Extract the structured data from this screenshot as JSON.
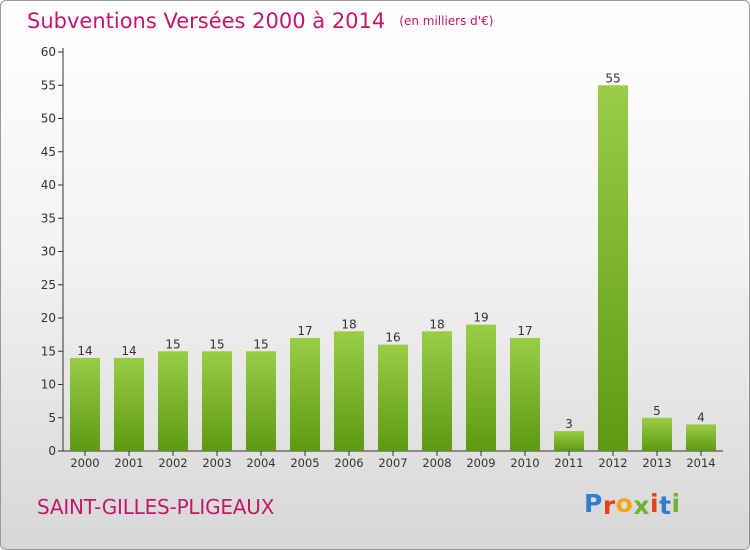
{
  "header": {
    "title": "Subventions Versées 2000 à 2014",
    "unit": "(en milliers d'€)"
  },
  "footer": {
    "commune": "SAINT-GILLES-PLIGEAUX",
    "logo": "Proxiti"
  },
  "colors": {
    "accent": "#c4176b",
    "bar_light": "#9acd45",
    "bar_dark": "#5c9a12",
    "logo": [
      "#2f7fd0",
      "#e8401c",
      "#f4a51a",
      "#6cb52d",
      "#e8401c",
      "#2f7fd0",
      "#6cb52d"
    ]
  },
  "chart_data": {
    "type": "bar",
    "title": "Subventions Versées 2000 à 2014",
    "subtitle": "(en milliers d'€)",
    "xlabel": "",
    "ylabel": "",
    "categories": [
      "2000",
      "2001",
      "2002",
      "2003",
      "2004",
      "2005",
      "2006",
      "2007",
      "2008",
      "2009",
      "2010",
      "2011",
      "2012",
      "2013",
      "2014"
    ],
    "values": [
      14,
      14,
      15,
      15,
      15,
      17,
      18,
      16,
      18,
      19,
      17,
      3,
      55,
      5,
      4
    ],
    "ylim": [
      0,
      60
    ],
    "yticks": [
      0,
      5,
      10,
      15,
      20,
      25,
      30,
      35,
      40,
      45,
      50,
      55,
      60
    ],
    "grid": false,
    "legend": "none"
  }
}
